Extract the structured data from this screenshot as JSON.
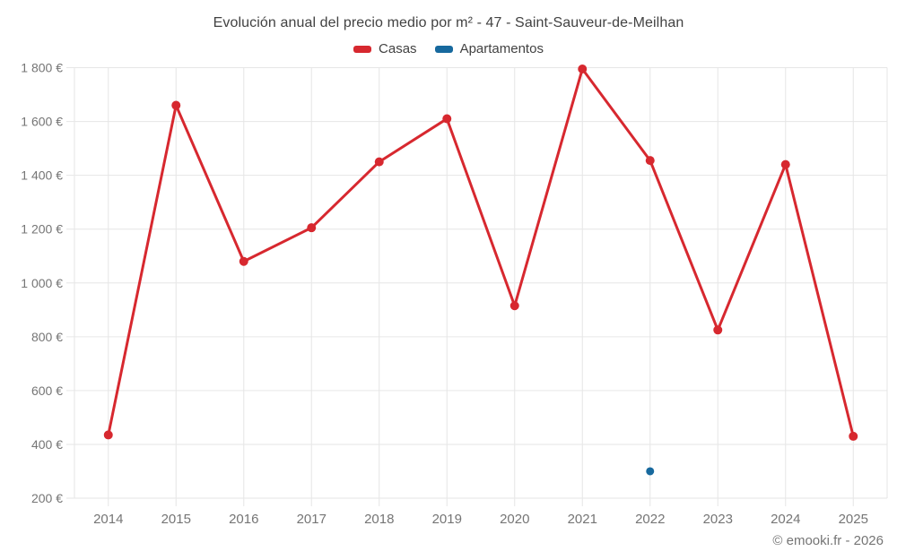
{
  "header": {
    "title": "Evolución anual del precio medio por m² - 47 - Saint-Sauveur-de-Meilhan"
  },
  "legend": {
    "items": [
      {
        "label": "Casas",
        "color": "#d7282f"
      },
      {
        "label": "Apartamentos",
        "color": "#17699e"
      }
    ]
  },
  "footer": {
    "copyright": "© emooki.fr - 2026"
  },
  "chart_data": {
    "type": "line",
    "title": "Evolución anual del precio medio por m² - 47 - Saint-Sauveur-de-Meilhan",
    "categories": [
      "2014",
      "2015",
      "2016",
      "2017",
      "2018",
      "2019",
      "2020",
      "2021",
      "2022",
      "2023",
      "2024",
      "2025"
    ],
    "series": [
      {
        "name": "Casas",
        "type": "line",
        "color": "#d7282f",
        "values": [
          435,
          1660,
          1080,
          1205,
          1450,
          1610,
          915,
          1795,
          1455,
          825,
          1440,
          430
        ]
      },
      {
        "name": "Apartamentos",
        "type": "scatter",
        "color": "#17699e",
        "values": [
          null,
          null,
          null,
          null,
          null,
          null,
          null,
          null,
          300,
          null,
          null,
          null
        ]
      }
    ],
    "ylabel": "",
    "xlabel": "",
    "ylim": [
      200,
      1800
    ],
    "yticks": [
      1800,
      1600,
      1400,
      1200,
      1000,
      800,
      600,
      400,
      200
    ],
    "ytick_labels": [
      "1 800 €",
      "1 600 €",
      "1 400 €",
      "1 200 €",
      "1 000 €",
      "800 €",
      "600 €",
      "400 €",
      "200 €"
    ],
    "grid": true,
    "legend_position": "top",
    "grid_color": "#e6e6e6",
    "axis_label_color": "#757575"
  }
}
